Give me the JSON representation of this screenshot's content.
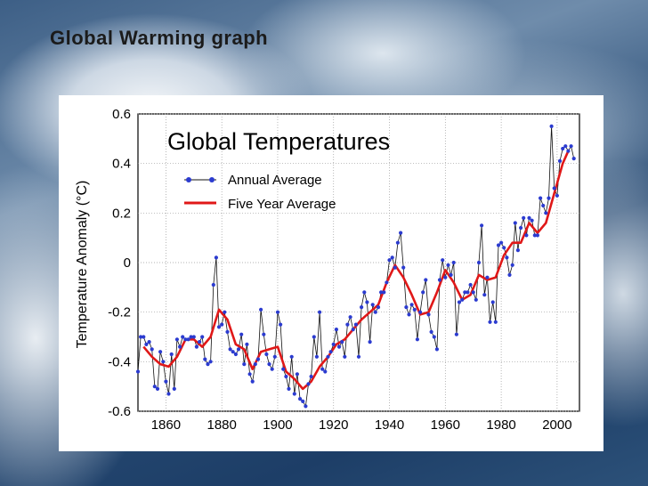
{
  "slide": {
    "title": "Global Warming graph"
  },
  "chart_data": {
    "type": "line",
    "title": "Global Temperatures",
    "xlabel": "",
    "ylabel": "Temperature Anomaly (°C)",
    "xlim": [
      1850,
      2008
    ],
    "ylim": [
      -0.6,
      0.6
    ],
    "xticks": [
      "1860",
      "1880",
      "1900",
      "1920",
      "1940",
      "1960",
      "1980",
      "2000"
    ],
    "yticks": [
      "0.6",
      "0.4",
      "0.2",
      "0",
      "-0.2",
      "-0.4",
      "-0.6"
    ],
    "legend_placement": "top-left",
    "grid": true,
    "series": [
      {
        "name": "Annual Average",
        "color": "#2b3bd0",
        "marker": "circle",
        "x": [
          1850,
          1851,
          1852,
          1853,
          1854,
          1855,
          1856,
          1857,
          1858,
          1859,
          1860,
          1861,
          1862,
          1863,
          1864,
          1865,
          1866,
          1867,
          1868,
          1869,
          1870,
          1871,
          1872,
          1873,
          1874,
          1875,
          1876,
          1877,
          1878,
          1879,
          1880,
          1881,
          1882,
          1883,
          1884,
          1885,
          1886,
          1887,
          1888,
          1889,
          1890,
          1891,
          1892,
          1893,
          1894,
          1895,
          1896,
          1897,
          1898,
          1899,
          1900,
          1901,
          1902,
          1903,
          1904,
          1905,
          1906,
          1907,
          1908,
          1909,
          1910,
          1911,
          1912,
          1913,
          1914,
          1915,
          1916,
          1917,
          1918,
          1919,
          1920,
          1921,
          1922,
          1923,
          1924,
          1925,
          1926,
          1927,
          1928,
          1929,
          1930,
          1931,
          1932,
          1933,
          1934,
          1935,
          1936,
          1937,
          1938,
          1939,
          1940,
          1941,
          1942,
          1943,
          1944,
          1945,
          1946,
          1947,
          1948,
          1949,
          1950,
          1951,
          1952,
          1953,
          1954,
          1955,
          1956,
          1957,
          1958,
          1959,
          1960,
          1961,
          1962,
          1963,
          1964,
          1965,
          1966,
          1967,
          1968,
          1969,
          1970,
          1971,
          1972,
          1973,
          1974,
          1975,
          1976,
          1977,
          1978,
          1979,
          1980,
          1981,
          1982,
          1983,
          1984,
          1985,
          1986,
          1987,
          1988,
          1989,
          1990,
          1991,
          1992,
          1993,
          1994,
          1995,
          1996,
          1997,
          1998,
          1999,
          2000,
          2001,
          2002,
          2003,
          2004,
          2005,
          2006
        ],
        "values": [
          -0.44,
          -0.3,
          -0.3,
          -0.33,
          -0.32,
          -0.35,
          -0.5,
          -0.51,
          -0.36,
          -0.4,
          -0.48,
          -0.53,
          -0.37,
          -0.51,
          -0.31,
          -0.34,
          -0.3,
          -0.31,
          -0.31,
          -0.3,
          -0.3,
          -0.34,
          -0.32,
          -0.3,
          -0.39,
          -0.41,
          -0.4,
          -0.09,
          0.02,
          -0.26,
          -0.25,
          -0.2,
          -0.28,
          -0.35,
          -0.36,
          -0.37,
          -0.35,
          -0.29,
          -0.41,
          -0.33,
          -0.45,
          -0.48,
          -0.41,
          -0.39,
          -0.19,
          -0.29,
          -0.37,
          -0.41,
          -0.43,
          -0.38,
          -0.2,
          -0.25,
          -0.43,
          -0.46,
          -0.51,
          -0.38,
          -0.53,
          -0.45,
          -0.55,
          -0.56,
          -0.58,
          -0.49,
          -0.46,
          -0.3,
          -0.38,
          -0.2,
          -0.43,
          -0.44,
          -0.38,
          -0.36,
          -0.33,
          -0.27,
          -0.34,
          -0.32,
          -0.38,
          -0.25,
          -0.22,
          -0.27,
          -0.25,
          -0.38,
          -0.18,
          -0.12,
          -0.16,
          -0.32,
          -0.17,
          -0.2,
          -0.18,
          -0.12,
          -0.12,
          -0.08,
          0.01,
          0.02,
          -0.02,
          0.08,
          0.12,
          -0.02,
          -0.18,
          -0.21,
          -0.17,
          -0.19,
          -0.31,
          -0.2,
          -0.12,
          -0.07,
          -0.21,
          -0.28,
          -0.3,
          -0.35,
          -0.07,
          0.01,
          -0.06,
          -0.01,
          -0.05,
          0.0,
          -0.29,
          -0.16,
          -0.15,
          -0.12,
          -0.12,
          -0.09,
          -0.12,
          -0.15,
          0.0,
          0.15,
          -0.13,
          -0.06,
          -0.24,
          -0.16,
          -0.24,
          0.07,
          0.08,
          0.06,
          0.02,
          -0.05,
          -0.01,
          0.16,
          0.05,
          0.14,
          0.18,
          0.11,
          0.18,
          0.17,
          0.11,
          0.11,
          0.26,
          0.23,
          0.2,
          0.26,
          0.55,
          0.3,
          0.27,
          0.41,
          0.46,
          0.47,
          0.45,
          0.47,
          0.42
        ]
      },
      {
        "name": "Five Year Average",
        "color": "#e01818",
        "x": [
          1852,
          1855,
          1858,
          1861,
          1864,
          1867,
          1870,
          1873,
          1876,
          1879,
          1882,
          1885,
          1888,
          1891,
          1894,
          1897,
          1900,
          1903,
          1906,
          1909,
          1912,
          1915,
          1918,
          1921,
          1924,
          1927,
          1930,
          1933,
          1936,
          1939,
          1942,
          1945,
          1948,
          1951,
          1954,
          1957,
          1960,
          1963,
          1966,
          1969,
          1972,
          1975,
          1978,
          1981,
          1984,
          1987,
          1990,
          1993,
          1996,
          1999,
          2002,
          2004
        ],
        "values": [
          -0.34,
          -0.38,
          -0.41,
          -0.42,
          -0.38,
          -0.31,
          -0.31,
          -0.34,
          -0.3,
          -0.19,
          -0.23,
          -0.33,
          -0.35,
          -0.43,
          -0.36,
          -0.35,
          -0.34,
          -0.44,
          -0.47,
          -0.51,
          -0.48,
          -0.42,
          -0.38,
          -0.33,
          -0.31,
          -0.27,
          -0.23,
          -0.2,
          -0.17,
          -0.08,
          -0.01,
          -0.06,
          -0.13,
          -0.21,
          -0.2,
          -0.12,
          -0.03,
          -0.08,
          -0.15,
          -0.13,
          -0.05,
          -0.07,
          -0.06,
          0.03,
          0.08,
          0.08,
          0.16,
          0.12,
          0.16,
          0.28,
          0.4,
          0.45
        ]
      }
    ]
  }
}
